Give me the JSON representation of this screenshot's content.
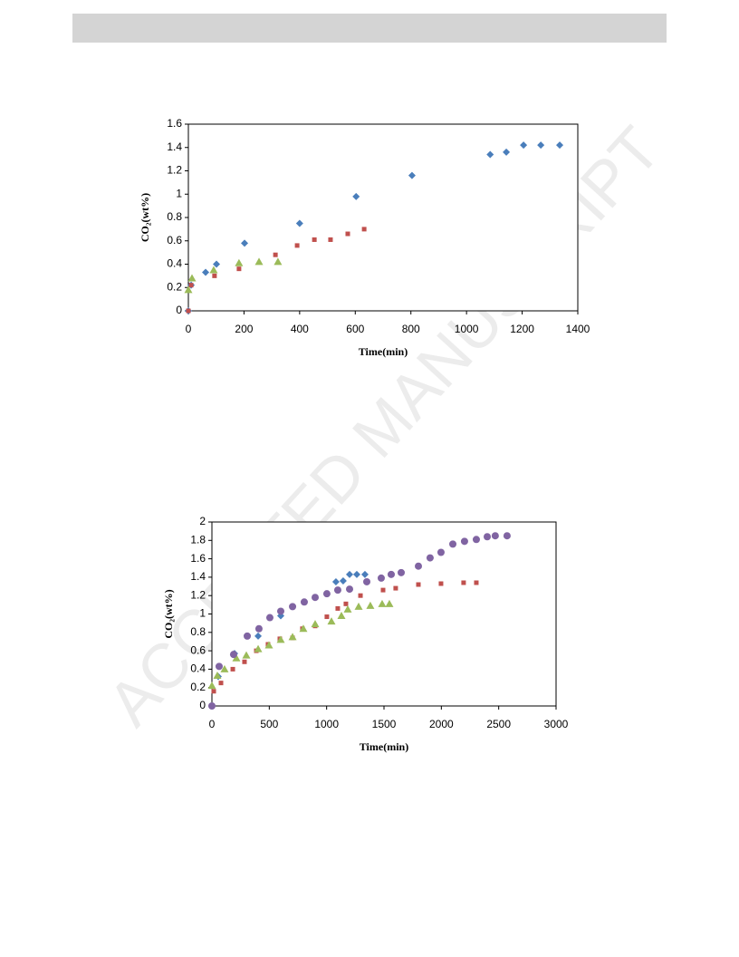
{
  "watermark": "ACCEPTED MANUSCRIPT",
  "chart_data": [
    {
      "type": "scatter",
      "x_label": "Time(min)",
      "y_label": "CO₂(wt%)",
      "xlim": [
        0,
        1400
      ],
      "xticks": [
        0,
        200,
        400,
        600,
        800,
        1000,
        1200,
        1400
      ],
      "ylim": [
        0,
        1.6
      ],
      "yticks": [
        0,
        0.2,
        0.4,
        0.6,
        0.8,
        1,
        1.2,
        1.4,
        1.6
      ],
      "series": [
        {
          "color": "#4a7ebb",
          "marker": "diamond",
          "x": [
            0,
            10,
            62,
            101,
            202,
            400,
            603,
            804,
            1085,
            1143,
            1205,
            1267,
            1335
          ],
          "values": [
            0,
            0.22,
            0.33,
            0.4,
            0.58,
            0.75,
            0.98,
            1.16,
            1.34,
            1.36,
            1.42,
            1.42,
            1.42
          ]
        },
        {
          "color": "#c0504d",
          "marker": "square",
          "x": [
            0,
            10,
            94,
            182,
            313,
            391,
            453,
            511,
            573,
            632
          ],
          "values": [
            0,
            0.22,
            0.3,
            0.36,
            0.48,
            0.56,
            0.61,
            0.61,
            0.66,
            0.7
          ]
        },
        {
          "color": "#9bbb59",
          "marker": "triangle",
          "x": [
            0,
            13,
            91,
            182,
            254,
            322
          ],
          "values": [
            0.18,
            0.28,
            0.35,
            0.41,
            0.42,
            0.42
          ]
        }
      ]
    },
    {
      "type": "scatter",
      "x_label": "Time(min)",
      "y_label": "CO₂(wt%)",
      "xlim": [
        0,
        3000
      ],
      "xticks": [
        0,
        500,
        1000,
        1500,
        2000,
        2500,
        3000
      ],
      "ylim": [
        0,
        2
      ],
      "yticks": [
        0,
        0.2,
        0.4,
        0.6,
        0.8,
        1,
        1.2,
        1.4,
        1.6,
        1.8,
        2
      ],
      "series": [
        {
          "color": "#4a7ebb",
          "marker": "diamond",
          "x": [
            0,
            55,
            197,
            403,
            600,
            1081,
            1144,
            1200,
            1263,
            1334
          ],
          "values": [
            0,
            0.32,
            0.57,
            0.76,
            0.98,
            1.35,
            1.36,
            1.43,
            1.43,
            1.43
          ]
        },
        {
          "color": "#c0504d",
          "marker": "square",
          "x": [
            0,
            16,
            79,
            182,
            284,
            387,
            489,
            592,
            703,
            789,
            900,
            1002,
            1097,
            1168,
            1295,
            1492,
            1602,
            1800,
            1997,
            2194,
            2305
          ],
          "values": [
            0,
            0.16,
            0.25,
            0.4,
            0.48,
            0.6,
            0.67,
            0.73,
            0.74,
            0.84,
            0.87,
            0.97,
            1.06,
            1.11,
            1.2,
            1.26,
            1.28,
            1.32,
            1.33,
            1.34,
            1.34
          ]
        },
        {
          "color": "#9bbb59",
          "marker": "triangle",
          "x": [
            0,
            47,
            110,
            213,
            300,
            403,
            497,
            600,
            703,
            797,
            900,
            1042,
            1129,
            1184,
            1279,
            1381,
            1484,
            1547
          ],
          "values": [
            0.22,
            0.33,
            0.4,
            0.52,
            0.55,
            0.62,
            0.66,
            0.72,
            0.75,
            0.84,
            0.89,
            0.92,
            0.98,
            1.05,
            1.08,
            1.09,
            1.11,
            1.11
          ]
        },
        {
          "color": "#8064a2",
          "marker": "circle",
          "x": [
            0,
            63,
            189,
            308,
            410,
            505,
            600,
            703,
            805,
            900,
            1002,
            1097,
            1200,
            1350,
            1476,
            1563,
            1650,
            1800,
            1902,
            1997,
            2100,
            2202,
            2305,
            2400,
            2470,
            2573
          ],
          "values": [
            0,
            0.43,
            0.56,
            0.76,
            0.84,
            0.96,
            1.03,
            1.08,
            1.13,
            1.18,
            1.22,
            1.26,
            1.27,
            1.35,
            1.39,
            1.43,
            1.45,
            1.52,
            1.61,
            1.67,
            1.76,
            1.79,
            1.81,
            1.84,
            1.85,
            1.85
          ]
        }
      ]
    }
  ]
}
